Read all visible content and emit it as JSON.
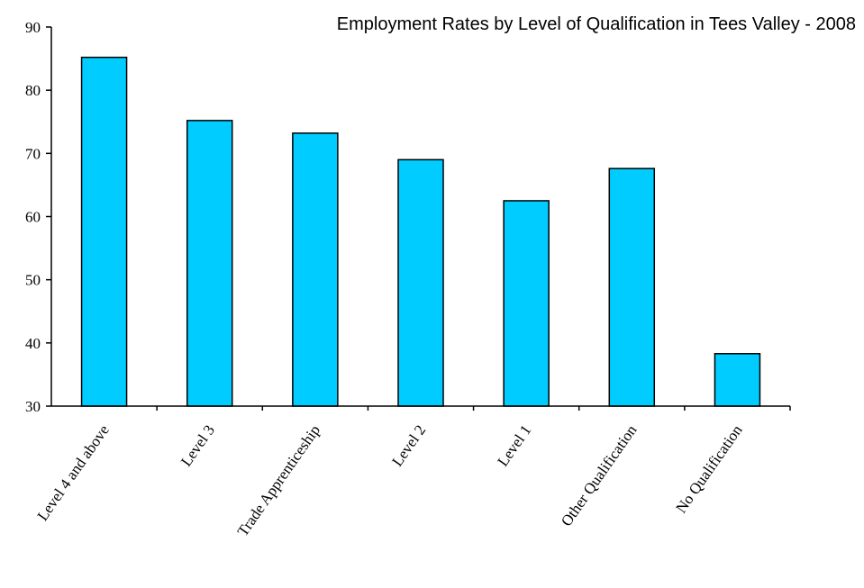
{
  "chart_data": {
    "type": "bar",
    "title": "Employment Rates by Level of Qualification in Tees Valley - 2008",
    "categories": [
      "Level 4 and above",
      "Level 3",
      "Trade Apprenticeship",
      "Level 2",
      "Level 1",
      "Other Qualification",
      "No Qualification"
    ],
    "values": [
      85.2,
      75.2,
      73.2,
      69.0,
      62.5,
      67.6,
      38.3
    ],
    "ylim": [
      30,
      90
    ],
    "yticks": [
      30,
      40,
      50,
      60,
      70,
      80,
      90
    ],
    "xlabel": "",
    "ylabel": "",
    "colors": {
      "bar": "#00CCFF",
      "stroke": "#000000"
    },
    "grid": false,
    "legend": "none"
  }
}
